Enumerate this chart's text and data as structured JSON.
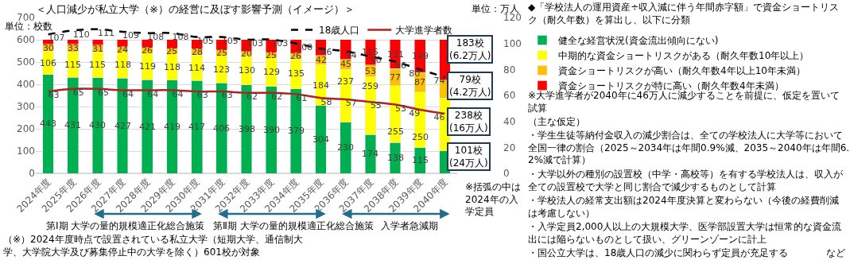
{
  "chart_data": {
    "type": "bar",
    "stacked": true,
    "title": "＜人口減少が私立大学（※）の経営に及ぼす影響予測（イメージ）＞",
    "ylabel": "単位：校数",
    "y2label": "単位：万人",
    "categories": [
      "2024年度",
      "2025年度",
      "2026年度",
      "2027年度",
      "2028年度",
      "2029年度",
      "2030年度",
      "2031年度",
      "2032年度",
      "2033年度",
      "2034年度",
      "2035年度",
      "2036年度",
      "2037年度",
      "2038年度",
      "2039年度",
      "2040年度"
    ],
    "series": [
      {
        "name": "健全な経営状況(資金流出傾向にない)",
        "color": "#00b050",
        "values": [
          443,
          431,
          430,
          427,
          421,
          419,
          417,
          406,
          398,
          390,
          379,
          304,
          230,
          174,
          138,
          115,
          101
        ],
        "value_labels": [
          "443",
          "431",
          "430",
          "427",
          "421",
          "419",
          "417",
          "406",
          "398",
          "390",
          "379",
          "304",
          "230",
          "174",
          "138",
          "115",
          null
        ]
      },
      {
        "name": "中期的な資金ショートリスクがある（耐久年数10年以上）",
        "color": "#ffff00",
        "values": [
          106,
          115,
          115,
          118,
          119,
          118,
          114,
          123,
          130,
          129,
          135,
          184,
          237,
          259,
          255,
          250,
          238
        ],
        "value_labels": [
          "106",
          "115",
          "115",
          "118",
          "119",
          "118",
          "114",
          "123",
          "130",
          "129",
          "135",
          "184",
          "237",
          "259",
          "255",
          "250",
          null
        ]
      },
      {
        "name": "資金ショートリスクが高い（耐久年数4年以上10年未満）",
        "color": "#ffc000",
        "values": [
          30,
          33,
          31,
          24,
          26,
          25,
          28,
          25,
          20,
          25,
          26,
          42,
          45,
          53,
          77,
          87,
          79
        ],
        "value_labels": [
          "30",
          "33",
          "31",
          "24",
          "26",
          "25",
          "28",
          "25",
          "20",
          "25",
          "26",
          "42",
          "45",
          "53",
          "77",
          "87",
          null
        ]
      },
      {
        "name": "資金ショートリスクが特に高い（耐久年数4年未満）",
        "color": "#ff0000",
        "values": [
          22,
          22,
          25,
          32,
          35,
          39,
          42,
          47,
          53,
          57,
          61,
          71,
          89,
          115,
          131,
          149,
          183
        ],
        "value_labels": [
          null,
          null,
          null,
          null,
          null,
          null,
          null,
          null,
          null,
          null,
          null,
          null,
          null,
          "115",
          "131",
          "149",
          null
        ]
      },
      {
        "name": "18歳人口",
        "type": "line",
        "axis": "y2",
        "color": "#000000",
        "line_style": "dashed",
        "values": [
          107,
          110,
          111,
          109,
          108,
          108,
          105,
          105,
          103,
          103,
          100,
          96,
          94,
          90,
          86,
          80,
          74
        ],
        "value_labels": [
          "107",
          "110",
          "111",
          "109",
          "108",
          "108",
          "105",
          "105",
          "103",
          "103",
          "100",
          "96",
          "94",
          "90",
          "86",
          "80",
          "74"
        ]
      },
      {
        "name": "大学進学者数",
        "type": "line",
        "axis": "y2",
        "color": "#b22222",
        "line_style": "solid",
        "values": [
          63,
          65,
          65,
          64,
          64,
          64,
          63,
          63,
          62,
          62,
          61,
          58,
          57,
          55,
          53,
          49,
          46
        ],
        "value_labels": [
          "63",
          "65",
          "65",
          "64",
          "64",
          "64",
          "63",
          "63",
          "62",
          "62",
          "61",
          "58",
          "57",
          "55",
          "53",
          "49",
          "46"
        ]
      }
    ],
    "ylim": [
      0,
      700
    ],
    "yticks": [
      0,
      100,
      200,
      300,
      400,
      500,
      600,
      700
    ],
    "y2lim": [
      0,
      120
    ],
    "y2ticks": [
      0,
      20,
      40,
      60,
      80,
      100,
      120
    ],
    "grid": "y",
    "legend": "top",
    "marker": "none",
    "annotations": [
      "◆「学校法人の運用資産÷収入減に伴う年間赤字額」で資金ショートリスク（耐久年数）を算出し、以下に分類",
      "※大学進学者が2040年に46万人に減少することを前提に、仮定を置いて試算",
      "（主な仮定）",
      "・学生生徒等納付金収入の減少割合は、全ての学校法人に大学等において全国一律の割合（2025～2034年は年間0.9%減、2035～2040年は年間6.2%減で計算）",
      "・大学以外の種別の設置校（中学・高校等）を有する学校法人は、収入が全ての設置校で大学と同じ割合で減少するものとして計算",
      "・学校法人の経常支出額は2024年度決算と変わらない（今後の経費削減は考慮しない）",
      "・入学定員2,000人以上の大規模大学、医学部設置大学は恒常的な資金流出には陥らないものとして扱い、グリーンゾーンに計上",
      "・国公立大学は、18歳人口の減少に関わらず定員が充足する",
      "など",
      "※括弧の中は2024年の入学定員",
      "（※）2024年度時点で設置されている私立大学（短期大学、通信制大学、大学院大学及び募集停止中の大学を除く）601校が対象",
      "第Ⅰ期 大学の量的規模適正化総合施策",
      "第Ⅱ期 大学の量的規模適正化総合施策",
      "入学者急減期",
      "183校(6.2万人)",
      "79校(4.2万人)",
      "238校(16万人)",
      "101校(24万人)"
    ]
  }
}
